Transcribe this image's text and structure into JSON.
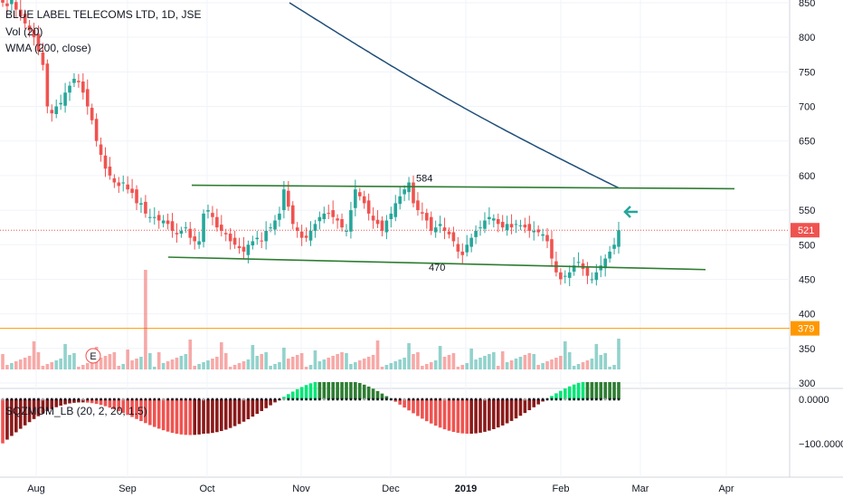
{
  "legend": {
    "symbol": "BLUE LABEL TELECOMS LTD, 1D, JSE",
    "volume": "Vol (20)",
    "wma": "WMA (200, close)",
    "sqzmom": "SQZMOM_LB (20, 2, 20, 1.5)"
  },
  "colors": {
    "up": "#26a69a",
    "down": "#ef5350",
    "wma": "#1f4e79",
    "channel": "#2e7d32",
    "level": "#ff9800",
    "last_price": "#ef5350",
    "mom_up_strong": "#00e676",
    "mom_up_weak": "#2e7d32",
    "mom_down_strong": "#ef5350",
    "mom_down_weak": "#8b1a1a"
  },
  "chart_data": {
    "type": "candlestick",
    "price_axis_ticks": [
      "850",
      "800",
      "750",
      "700",
      "650",
      "600",
      "550",
      "500",
      "450",
      "400",
      "350",
      "300"
    ],
    "momentum_axis_ticks": [
      "0.0000",
      "−100.0000"
    ],
    "time_axis_ticks": [
      "Aug",
      "Sep",
      "Oct",
      "Nov",
      "Dec",
      "2019",
      "Feb",
      "Mar",
      "Apr"
    ],
    "last_price": "521",
    "level_line": "379",
    "channel_top_label": "584",
    "channel_bottom_label": "470",
    "earnings_marker": "E",
    "ylim": [
      280,
      860
    ],
    "candles_close_approx": [
      850,
      845,
      855,
      840,
      830,
      820,
      810,
      800,
      780,
      760,
      700,
      690,
      700,
      705,
      720,
      730,
      740,
      735,
      720,
      700,
      680,
      650,
      630,
      610,
      600,
      590,
      585,
      590,
      580,
      575,
      560,
      560,
      545,
      540,
      540,
      535,
      535,
      530,
      520,
      515,
      520,
      525,
      510,
      505,
      505,
      545,
      550,
      540,
      525,
      520,
      515,
      505,
      500,
      495,
      490,
      500,
      505,
      510,
      505,
      520,
      525,
      535,
      545,
      580,
      555,
      530,
      520,
      510,
      510,
      520,
      530,
      540,
      545,
      545,
      540,
      535,
      525,
      520,
      550,
      580,
      570,
      560,
      545,
      535,
      530,
      520,
      535,
      545,
      560,
      570,
      580,
      590,
      560,
      550,
      545,
      535,
      520,
      525,
      530,
      520,
      515,
      505,
      490,
      485,
      500,
      510,
      520,
      525,
      535,
      540,
      538,
      530,
      525,
      530,
      525,
      530,
      528,
      525,
      520,
      520,
      518,
      515,
      505,
      480,
      460,
      450,
      455,
      460,
      470,
      475,
      465,
      455,
      450,
      460,
      470,
      480,
      490,
      500,
      521
    ]
  }
}
